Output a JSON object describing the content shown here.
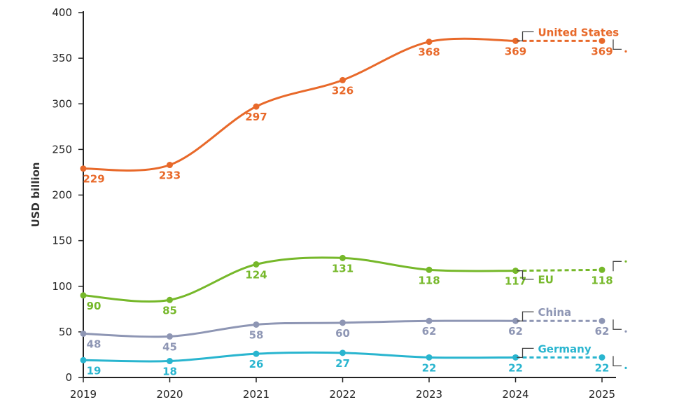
{
  "chart_data": {
    "type": "line",
    "title": "",
    "xlabel": "",
    "ylabel": "USD billion",
    "ylim": [
      0,
      400
    ],
    "yticks": [
      0,
      50,
      100,
      150,
      200,
      250,
      300,
      350,
      400
    ],
    "categories": [
      "2019",
      "2020",
      "2021",
      "2022",
      "2023",
      "2024",
      "2025"
    ],
    "projection_start_index": 5,
    "series": [
      {
        "name": "United States",
        "color": "#e8692a",
        "values": [
          229,
          233,
          297,
          326,
          368,
          369,
          369
        ],
        "labels": [
          "229",
          "233",
          "297",
          "326",
          "368",
          "369",
          "369"
        ]
      },
      {
        "name": "EU",
        "color": "#76b82a",
        "values": [
          90,
          85,
          124,
          131,
          118,
          117,
          118
        ],
        "labels": [
          "90",
          "85",
          "124",
          "131",
          "118",
          "117",
          "118"
        ]
      },
      {
        "name": "China",
        "color": "#8e96b4",
        "values": [
          48,
          45,
          58,
          60,
          62,
          62,
          62
        ],
        "labels": [
          "48",
          "45",
          "58",
          "60",
          "62",
          "62",
          "62"
        ]
      },
      {
        "name": "Germany",
        "color": "#29b5cf",
        "values": [
          19,
          18,
          26,
          27,
          22,
          22,
          22
        ],
        "labels": [
          "19",
          "18",
          "26",
          "27",
          "22",
          "22",
          "22"
        ]
      }
    ]
  }
}
